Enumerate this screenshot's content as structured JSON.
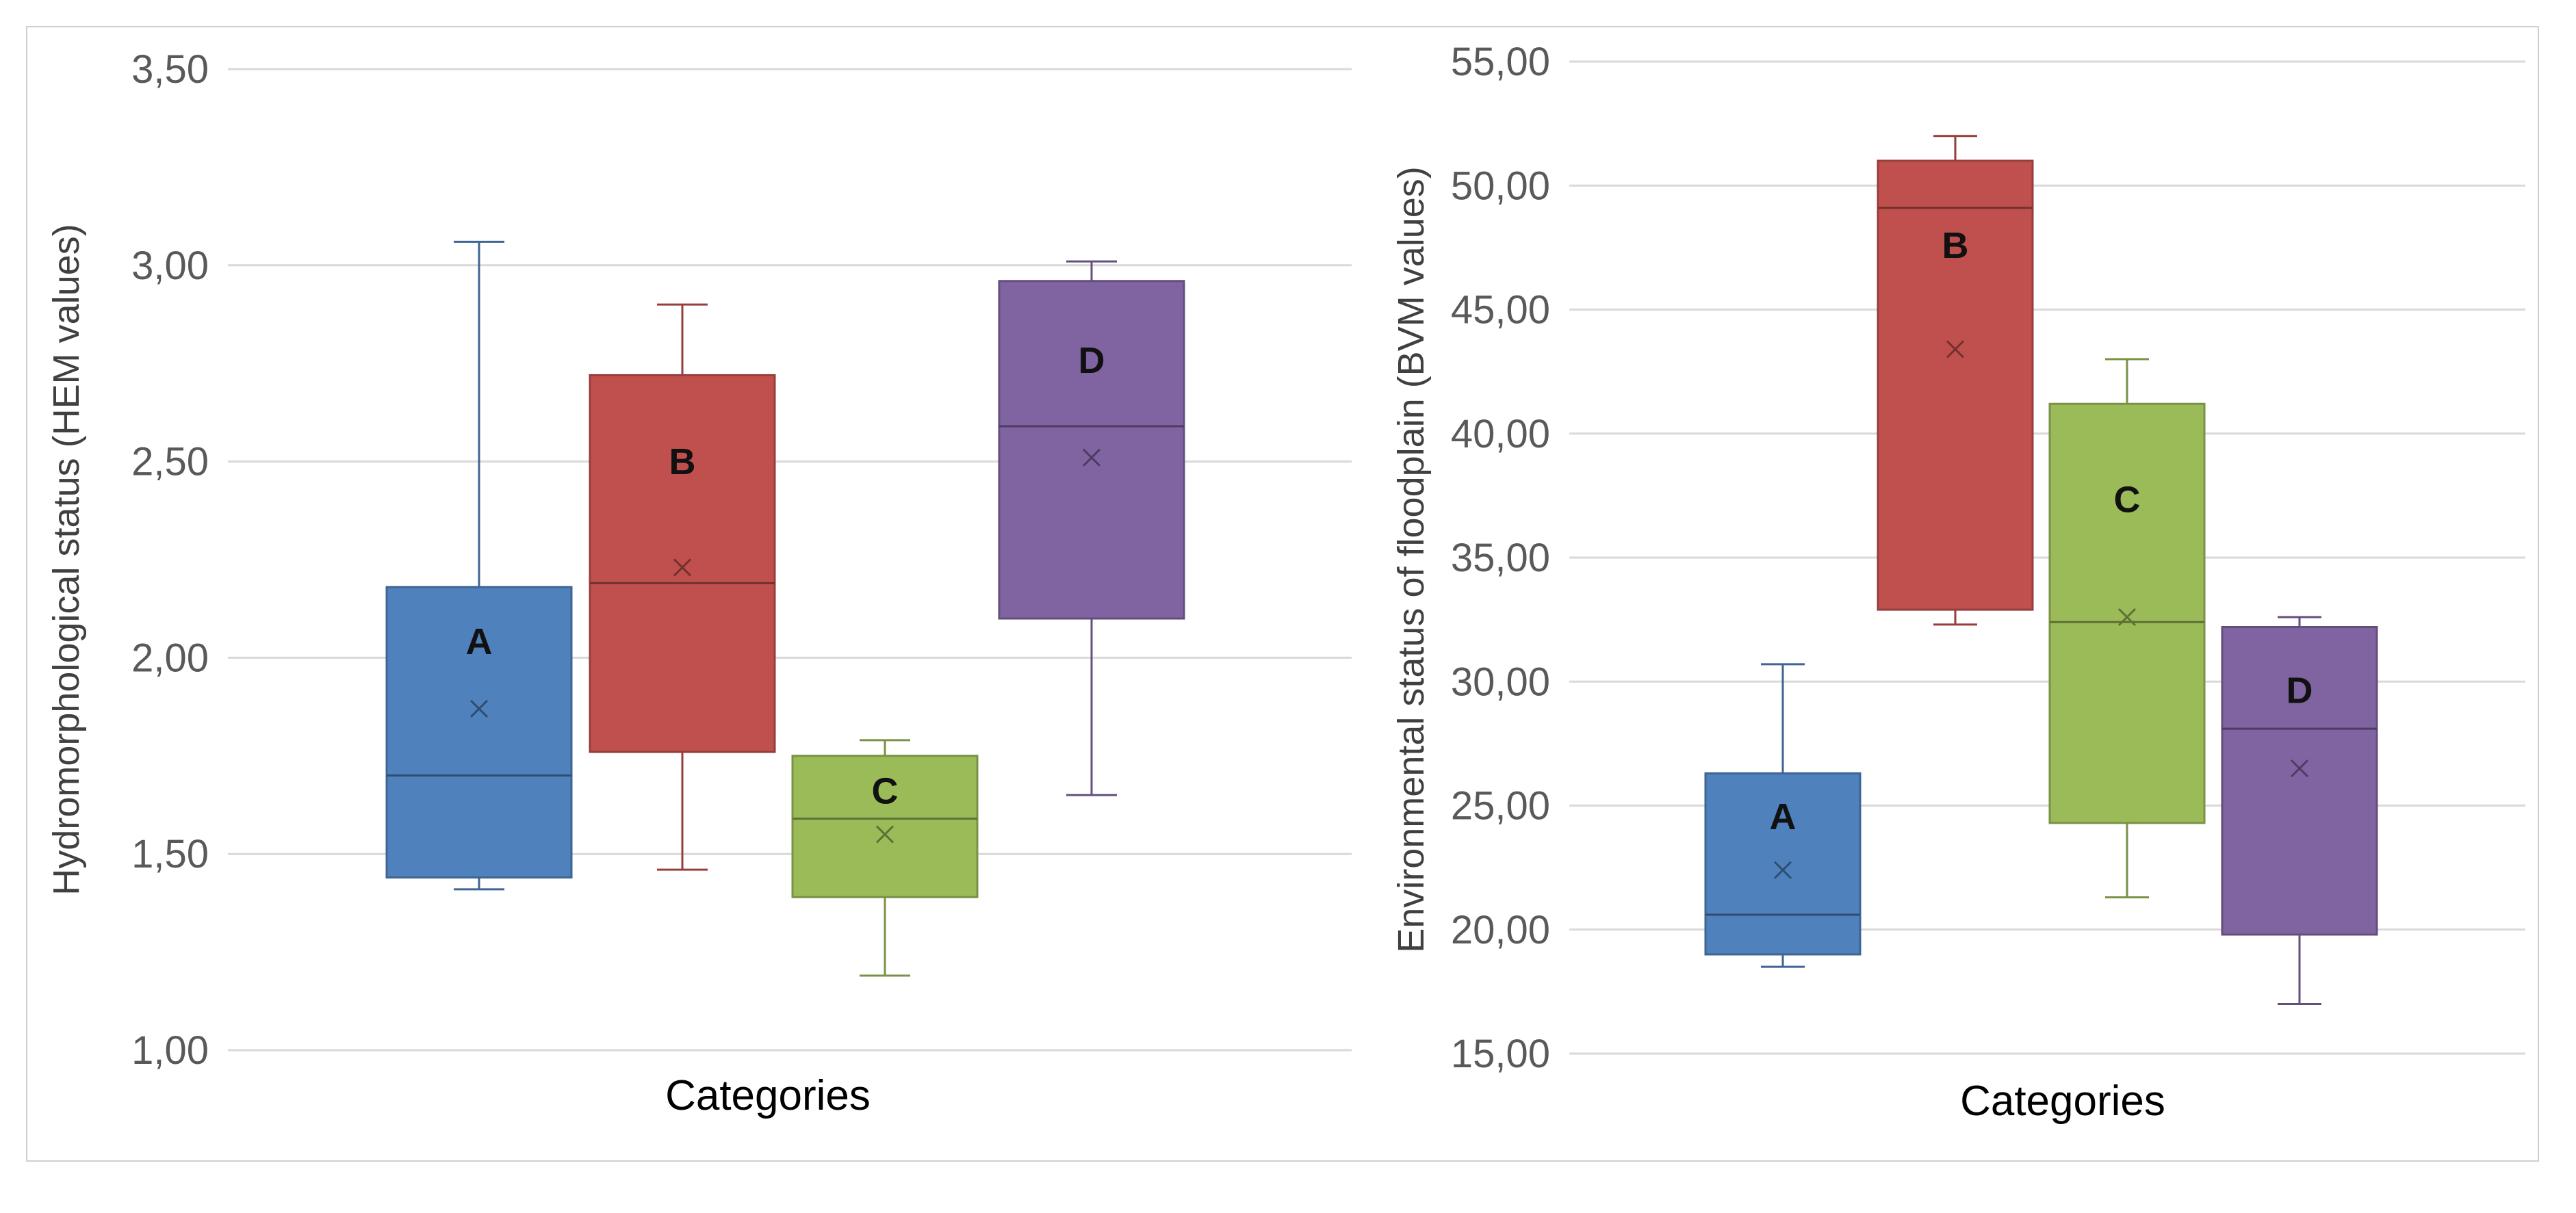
{
  "chart_data": [
    {
      "type": "box",
      "title": "",
      "xlabel": "Categories",
      "ylabel": "Hydromorphological status (HEM values)",
      "ylim": [
        1.0,
        3.5
      ],
      "ytick_values": [
        1.0,
        1.5,
        2.0,
        2.5,
        3.0,
        3.5
      ],
      "ytick_labels": [
        "1,00",
        "1,50",
        "2,00",
        "2,50",
        "3,00",
        "3,50"
      ],
      "grid": true,
      "series": [
        {
          "name": "A",
          "color": "#4f81bd",
          "min": 1.41,
          "q1": 1.44,
          "median": 1.7,
          "q3": 2.18,
          "max": 3.06,
          "mean": 1.87
        },
        {
          "name": "B",
          "color": "#c0504d",
          "min": 1.46,
          "q1": 1.76,
          "median": 2.19,
          "q3": 2.72,
          "max": 2.9,
          "mean": 2.23
        },
        {
          "name": "C",
          "color": "#9bbb59",
          "min": 1.19,
          "q1": 1.39,
          "median": 1.59,
          "q3": 1.75,
          "max": 1.79,
          "mean": 1.55
        },
        {
          "name": "D",
          "color": "#8064a2",
          "min": 1.65,
          "q1": 2.1,
          "median": 2.59,
          "q3": 2.96,
          "max": 3.01,
          "mean": 2.51
        }
      ]
    },
    {
      "type": "box",
      "title": "",
      "xlabel": "Categories",
      "ylabel": "Environmental status of floodplain (BVM values)",
      "ylim": [
        15.0,
        55.0
      ],
      "ytick_values": [
        15,
        20,
        25,
        30,
        35,
        40,
        45,
        50,
        55
      ],
      "ytick_labels": [
        "15,00",
        "20,00",
        "25,00",
        "30,00",
        "35,00",
        "40,00",
        "45,00",
        "50,00",
        "55,00"
      ],
      "grid": true,
      "series": [
        {
          "name": "A",
          "color": "#4f81bd",
          "min": 18.5,
          "q1": 19.0,
          "median": 20.6,
          "q3": 26.3,
          "max": 30.7,
          "mean": 22.4
        },
        {
          "name": "B",
          "color": "#c0504d",
          "min": 32.3,
          "q1": 32.9,
          "median": 49.1,
          "q3": 51.0,
          "max": 52.0,
          "mean": 43.4
        },
        {
          "name": "C",
          "color": "#9bbb59",
          "min": 21.3,
          "q1": 24.3,
          "median": 32.4,
          "q3": 41.2,
          "max": 43.0,
          "mean": 32.6
        },
        {
          "name": "D",
          "color": "#8064a2",
          "min": 17.0,
          "q1": 19.8,
          "median": 28.1,
          "q3": 32.2,
          "max": 32.6,
          "mean": 26.5
        }
      ]
    }
  ]
}
